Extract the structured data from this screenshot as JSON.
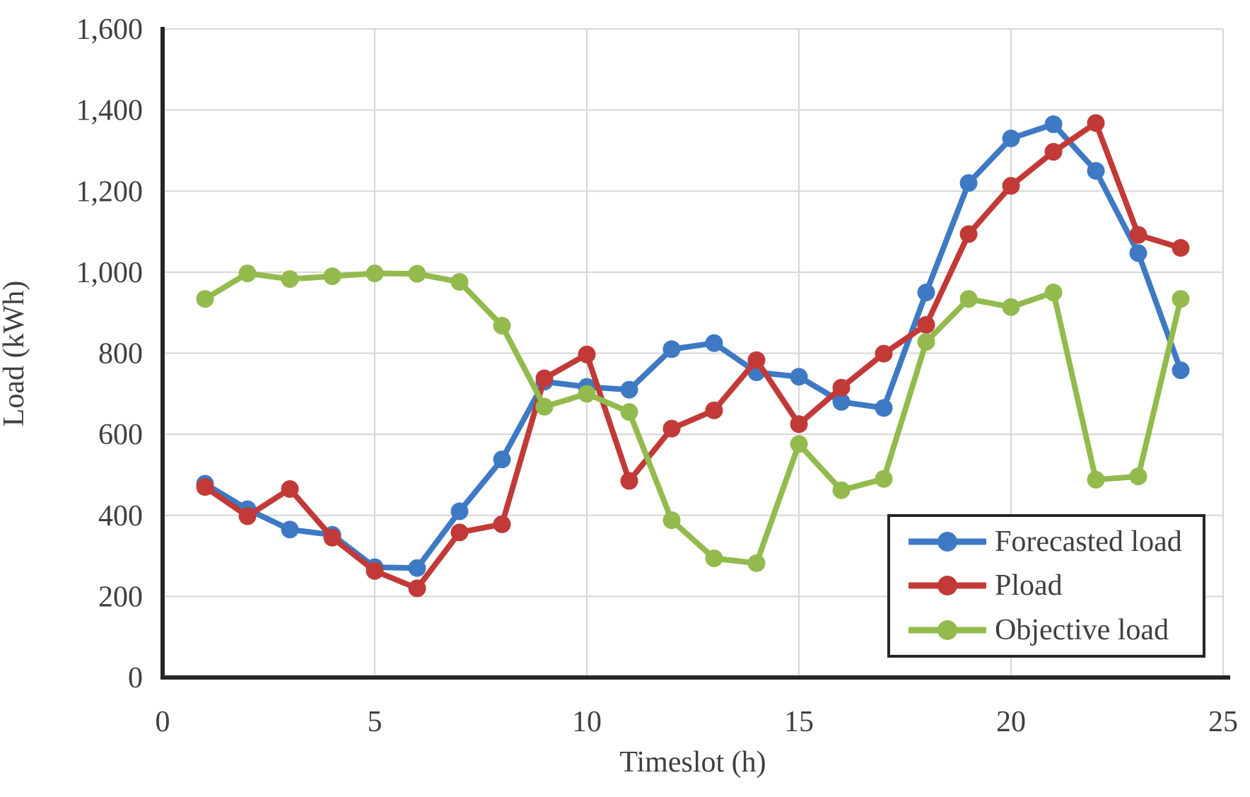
{
  "chart_data": {
    "type": "line",
    "title": "",
    "xlabel": "Timeslot (h)",
    "ylabel": "Load (kWh)",
    "x": [
      1,
      2,
      3,
      4,
      5,
      6,
      7,
      8,
      9,
      10,
      11,
      12,
      13,
      14,
      15,
      16,
      17,
      18,
      19,
      20,
      21,
      22,
      23,
      24
    ],
    "series": [
      {
        "name": "Forecasted load",
        "color": "#3E79C4",
        "values": [
          478,
          415,
          365,
          352,
          272,
          270,
          410,
          538,
          730,
          717,
          710,
          810,
          825,
          753,
          742,
          680,
          665,
          950,
          1220,
          1330,
          1365,
          1250,
          1047,
          758
        ]
      },
      {
        "name": "Pload",
        "color": "#C13A37",
        "values": [
          470,
          398,
          465,
          345,
          263,
          220,
          358,
          378,
          738,
          797,
          485,
          614,
          659,
          783,
          625,
          715,
          799,
          870,
          1094,
          1213,
          1297,
          1368,
          1092,
          1060
        ]
      },
      {
        "name": "Objective load",
        "color": "#93BA4D",
        "values": [
          934,
          997,
          983,
          990,
          997,
          996,
          976,
          868,
          668,
          700,
          655,
          388,
          294,
          282,
          576,
          462,
          490,
          828,
          934,
          914,
          950,
          488,
          496,
          934
        ]
      }
    ],
    "xlim": [
      0,
      25
    ],
    "ylim": [
      0,
      1600
    ],
    "x_ticks": [
      0,
      5,
      10,
      15,
      20,
      25
    ],
    "y_ticks": [
      0,
      200,
      400,
      600,
      800,
      1000,
      1200,
      1400,
      1600
    ],
    "y_tick_labels": [
      "0",
      "200",
      "400",
      "600",
      "800",
      "1,000",
      "1,200",
      "1,400",
      "1,600"
    ],
    "grid": true,
    "legend_position": "inside-bottom-right"
  },
  "style": {
    "grid_color": "#D6D6D6",
    "axis_color": "#262626",
    "text_color": "#3f3f3f"
  }
}
